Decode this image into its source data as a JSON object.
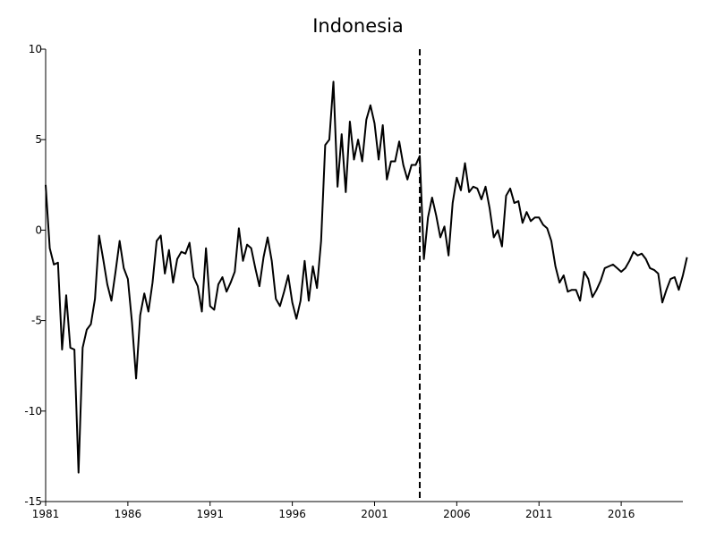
{
  "chart_data": {
    "type": "line",
    "title": "Indonesia",
    "xlabel": "",
    "ylabel": "",
    "xlim": [
      1981.0,
      2019.75
    ],
    "ylim": [
      -15,
      10
    ],
    "x_ticks": [
      1981,
      1986,
      1991,
      1996,
      2001,
      2006,
      2011,
      2016
    ],
    "y_ticks": [
      -15,
      -10,
      -5,
      0,
      5,
      10
    ],
    "x_start": 1981.0,
    "x_step": 0.25,
    "grid": false,
    "legend": "none",
    "vertical_marker": {
      "x": 2003.75,
      "style": "dashed"
    },
    "colors": {
      "line": "#000000",
      "axis": "#000000",
      "marker": "#000000"
    },
    "series": [
      {
        "values": [
          2.5,
          -1.0,
          -1.9,
          -1.8,
          -6.6,
          -3.6,
          -6.5,
          -6.6,
          -13.4,
          -6.5,
          -5.5,
          -5.2,
          -3.8,
          -0.3,
          -1.6,
          -3.0,
          -3.9,
          -2.3,
          -0.6,
          -2.1,
          -2.7,
          -5.1,
          -8.2,
          -4.7,
          -3.5,
          -4.5,
          -2.9,
          -0.6,
          -0.3,
          -2.4,
          -1.1,
          -2.9,
          -1.6,
          -1.2,
          -1.3,
          -0.7,
          -2.6,
          -3.1,
          -4.5,
          -1.0,
          -4.2,
          -4.4,
          -3.0,
          -2.6,
          -3.4,
          -2.9,
          -2.3,
          0.1,
          -1.7,
          -0.8,
          -1.0,
          -2.1,
          -3.1,
          -1.5,
          -0.4,
          -1.7,
          -3.8,
          -4.2,
          -3.4,
          -2.5,
          -4.0,
          -4.9,
          -3.9,
          -1.7,
          -3.9,
          -2.0,
          -3.2,
          -0.6,
          4.7,
          5.0,
          8.2,
          2.4,
          5.3,
          2.1,
          6.0,
          3.9,
          5.0,
          3.8,
          6.1,
          6.9,
          5.9,
          3.9,
          5.8,
          2.8,
          3.8,
          3.8,
          4.9,
          3.6,
          2.8,
          3.6,
          3.6,
          4.1,
          -1.6,
          0.7,
          1.8,
          0.8,
          -0.4,
          0.2,
          -1.4,
          1.5,
          2.9,
          2.2,
          3.7,
          2.1,
          2.4,
          2.3,
          1.7,
          2.4,
          1.2,
          -0.4,
          0.0,
          -0.9,
          1.9,
          2.3,
          1.5,
          1.6,
          0.4,
          1.0,
          0.5,
          0.7,
          0.7,
          0.3,
          0.1,
          -0.6,
          -2.0,
          -2.9,
          -2.5,
          -3.4,
          -3.3,
          -3.3,
          -3.9,
          -2.3,
          -2.7,
          -3.7,
          -3.3,
          -2.8,
          -2.1,
          -2.0,
          -1.9,
          -2.1,
          -2.3,
          -2.1,
          -1.7,
          -1.2,
          -1.4,
          -1.3,
          -1.6,
          -2.1,
          -2.2,
          -2.4,
          -4.0,
          -3.3,
          -2.7,
          -2.6,
          -3.3,
          -2.5,
          -1.5
        ]
      }
    ]
  }
}
